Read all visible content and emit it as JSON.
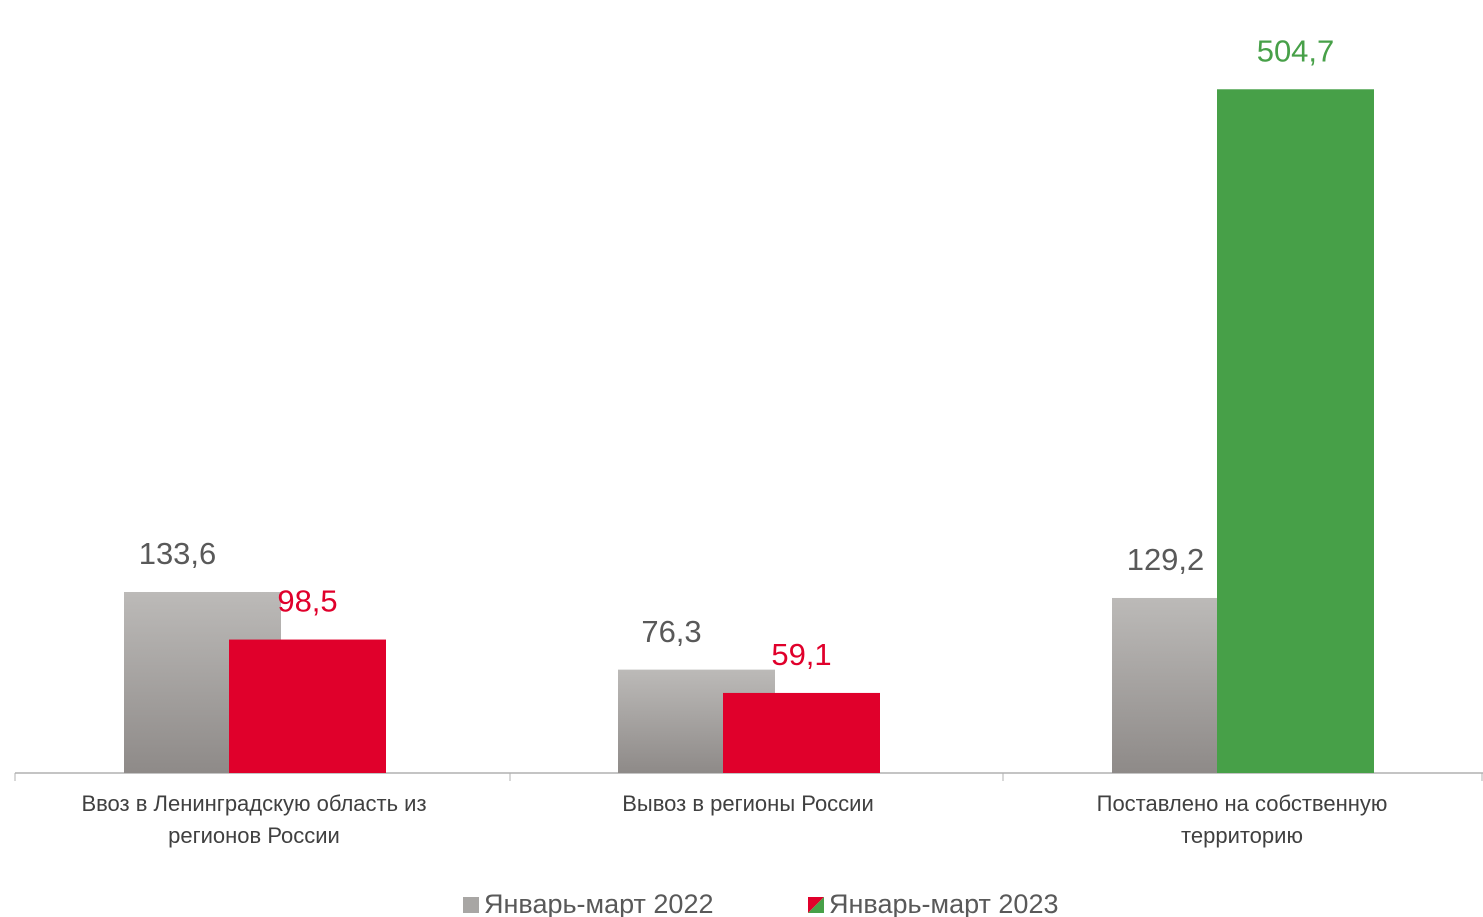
{
  "chart_data": {
    "type": "bar",
    "categories": [
      "Ввоз в Ленинградскую область из регионов России",
      "Вывоз в регионы России",
      "Поставлено на собственную территорию"
    ],
    "series": [
      {
        "name": "Январь-март 2022",
        "color": "#a8a6a4",
        "values": [
          133.6,
          76.3,
          129.2
        ],
        "value_labels": [
          "133,6",
          "76,3",
          "129,2"
        ]
      },
      {
        "name": "Январь-март 2023",
        "colors": [
          "#e0002b",
          "#e0002b",
          "#47a048"
        ],
        "values": [
          98.5,
          59.1,
          504.7
        ],
        "value_labels": [
          "98,5",
          "59,1",
          "504,7"
        ]
      }
    ],
    "ylim": [
      0,
      530
    ]
  }
}
